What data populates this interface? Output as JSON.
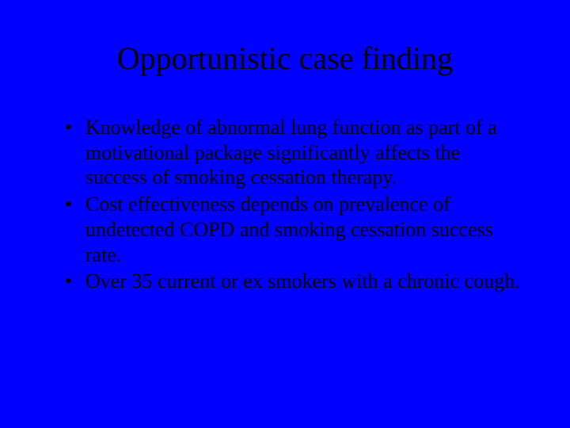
{
  "slide": {
    "background_color": "#0000fe",
    "text_color": "#000000",
    "font_family": "Times New Roman",
    "title": "Opportunistic case finding",
    "title_fontsize": 40,
    "body_fontsize": 26,
    "bullets": [
      "Knowledge of abnormal lung function as part of a motivational package significantly affects the success of smoking cessation therapy.",
      "Cost effectiveness depends on prevalence of undetected COPD and smoking cessation success rate.",
      "Over 35 current or ex smokers with a chronic cough."
    ]
  }
}
